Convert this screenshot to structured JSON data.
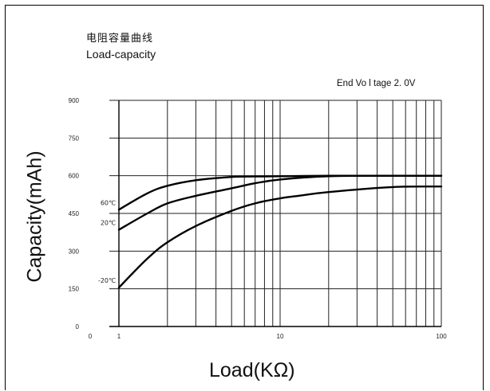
{
  "chart_data": {
    "type": "line",
    "title_zh": "电阻容量曲线",
    "title": "Load-capacity",
    "subtitle": "End Vo l tage 2. 0V",
    "xlabel": "Load(KΩ)",
    "ylabel": "Capacity(mAh)",
    "x_scale": "log",
    "xlim": [
      1,
      100
    ],
    "ylim": [
      0,
      900
    ],
    "x_ticks": [
      {
        "value": 0.49,
        "label": "0"
      },
      {
        "value": 1,
        "label": "1"
      },
      {
        "value": 10,
        "label": "10"
      },
      {
        "value": 100,
        "label": "100"
      }
    ],
    "y_ticks": [
      0,
      150,
      300,
      450,
      600,
      750,
      900
    ],
    "grid": true,
    "series": [
      {
        "name": "60℃",
        "x": [
          1,
          1.5,
          2,
          3,
          5,
          7,
          10,
          20,
          50,
          100
        ],
        "values": [
          465,
          530,
          560,
          582,
          595,
          597,
          598,
          600,
          600,
          600
        ]
      },
      {
        "name": "20℃",
        "x": [
          1,
          1.5,
          2,
          3,
          5,
          7,
          10,
          20,
          50,
          100
        ],
        "values": [
          385,
          450,
          490,
          520,
          550,
          570,
          585,
          598,
          600,
          600
        ]
      },
      {
        "name": "-20℃",
        "x": [
          1,
          1.5,
          2,
          3,
          5,
          7,
          10,
          13,
          20,
          50,
          100
        ],
        "values": [
          155,
          270,
          335,
          400,
          460,
          490,
          510,
          520,
          535,
          555,
          557
        ]
      }
    ]
  }
}
